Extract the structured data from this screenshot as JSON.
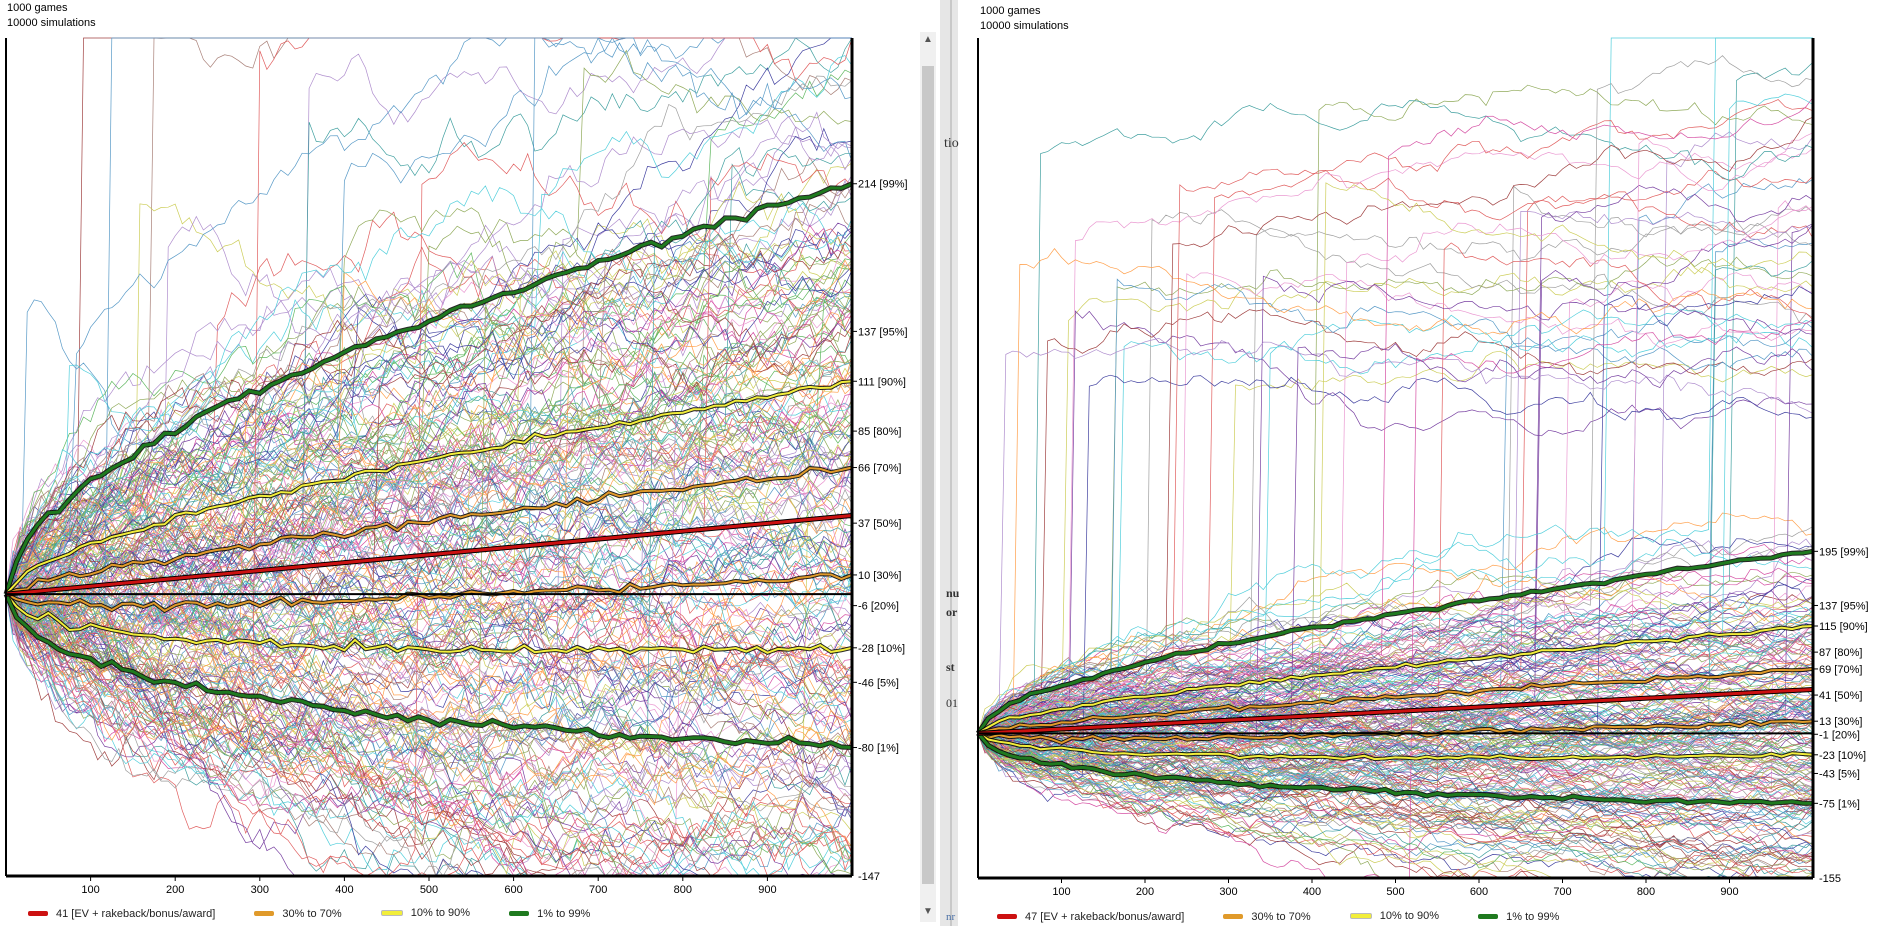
{
  "charts": [
    {
      "header": {
        "line1": "1000 games",
        "line2": "10000 simulations"
      },
      "legend": [
        {
          "label": "41 [EV + rakeback/bonus/award]",
          "color": "#cc1111"
        },
        {
          "label": "30% to 70%",
          "color": "#e09a2a"
        },
        {
          "label": "10% to 90%",
          "color": "#f2ee3a"
        },
        {
          "label": "1% to 99%",
          "color": "#1f7a1f"
        }
      ]
    },
    {
      "header": {
        "line1": "1000 games",
        "line2": "10000 simulations"
      },
      "legend": [
        {
          "label": "47 [EV + rakeback/bonus/award]",
          "color": "#cc1111"
        },
        {
          "label": "30% to 70%",
          "color": "#e09a2a"
        },
        {
          "label": "10% to 90%",
          "color": "#f2ee3a"
        },
        {
          "label": "1% to 99%",
          "color": "#1f7a1f"
        }
      ]
    }
  ],
  "chart_data": [
    {
      "type": "line",
      "title": "1000 games / 10000 simulations",
      "xlabel": "",
      "ylabel": "",
      "xlim": [
        0,
        1000
      ],
      "ylim": [
        -147,
        290
      ],
      "x_ticks": [
        100,
        200,
        300,
        400,
        500,
        600,
        700,
        800,
        900
      ],
      "bottom_label": "-147",
      "ev_line": {
        "name": "41 [EV + rakeback/bonus/award]",
        "end_value": 41,
        "color": "#cc1111"
      },
      "percentiles": [
        {
          "label": "214 [99%]",
          "value": 214,
          "band": "1% to 99%",
          "color": "#1f7a1f"
        },
        {
          "label": "137 [95%]",
          "value": 137,
          "band": "none",
          "color": "none"
        },
        {
          "label": "111 [90%]",
          "value": 111,
          "band": "10% to 90%",
          "color": "#f2ee3a"
        },
        {
          "label": "85 [80%]",
          "value": 85,
          "band": "none",
          "color": "none"
        },
        {
          "label": "66 [70%]",
          "value": 66,
          "band": "30% to 70%",
          "color": "#e09a2a"
        },
        {
          "label": "37 [50%]",
          "value": 37,
          "band": "none",
          "color": "none"
        },
        {
          "label": "10 [30%]",
          "value": 10,
          "band": "30% to 70%",
          "color": "#e09a2a"
        },
        {
          "label": "-6 [20%]",
          "value": -6,
          "band": "none",
          "color": "none"
        },
        {
          "label": "-28 [10%]",
          "value": -28,
          "band": "10% to 90%",
          "color": "#f2ee3a"
        },
        {
          "label": "-46 [5%]",
          "value": -46,
          "band": "none",
          "color": "none"
        },
        {
          "label": "-80 [1%]",
          "value": -80,
          "band": "1% to 99%",
          "color": "#1f7a1f"
        }
      ]
    },
    {
      "type": "line",
      "title": "1000 games / 10000 simulations",
      "xlabel": "",
      "ylabel": "",
      "xlim": [
        0,
        1000
      ],
      "ylim": [
        -155,
        745
      ],
      "x_ticks": [
        100,
        200,
        300,
        400,
        500,
        600,
        700,
        800,
        900
      ],
      "bottom_label": "-155",
      "ev_line": {
        "name": "47 [EV + rakeback/bonus/award]",
        "end_value": 47,
        "color": "#cc1111"
      },
      "percentiles": [
        {
          "label": "195 [99%]",
          "value": 195,
          "band": "1% to 99%",
          "color": "#1f7a1f"
        },
        {
          "label": "137 [95%]",
          "value": 137,
          "band": "none",
          "color": "none"
        },
        {
          "label": "115 [90%]",
          "value": 115,
          "band": "10% to 90%",
          "color": "#f2ee3a"
        },
        {
          "label": "87 [80%]",
          "value": 87,
          "band": "none",
          "color": "none"
        },
        {
          "label": "69 [70%]",
          "value": 69,
          "band": "30% to 70%",
          "color": "#e09a2a"
        },
        {
          "label": "41 [50%]",
          "value": 41,
          "band": "none",
          "color": "none"
        },
        {
          "label": "13 [30%]",
          "value": 13,
          "band": "30% to 70%",
          "color": "#e09a2a"
        },
        {
          "label": "-1 [20%]",
          "value": -1,
          "band": "none",
          "color": "none"
        },
        {
          "label": "-23 [10%]",
          "value": -23,
          "band": "10% to 90%",
          "color": "#f2ee3a"
        },
        {
          "label": "-43 [5%]",
          "value": -43,
          "band": "none",
          "color": "none"
        },
        {
          "label": "-75 [1%]",
          "value": -75,
          "band": "1% to 99%",
          "color": "#1f7a1f"
        }
      ]
    }
  ],
  "background_fragments": [
    "tio",
    "nu",
    "or",
    "st",
    "01",
    "nr"
  ]
}
